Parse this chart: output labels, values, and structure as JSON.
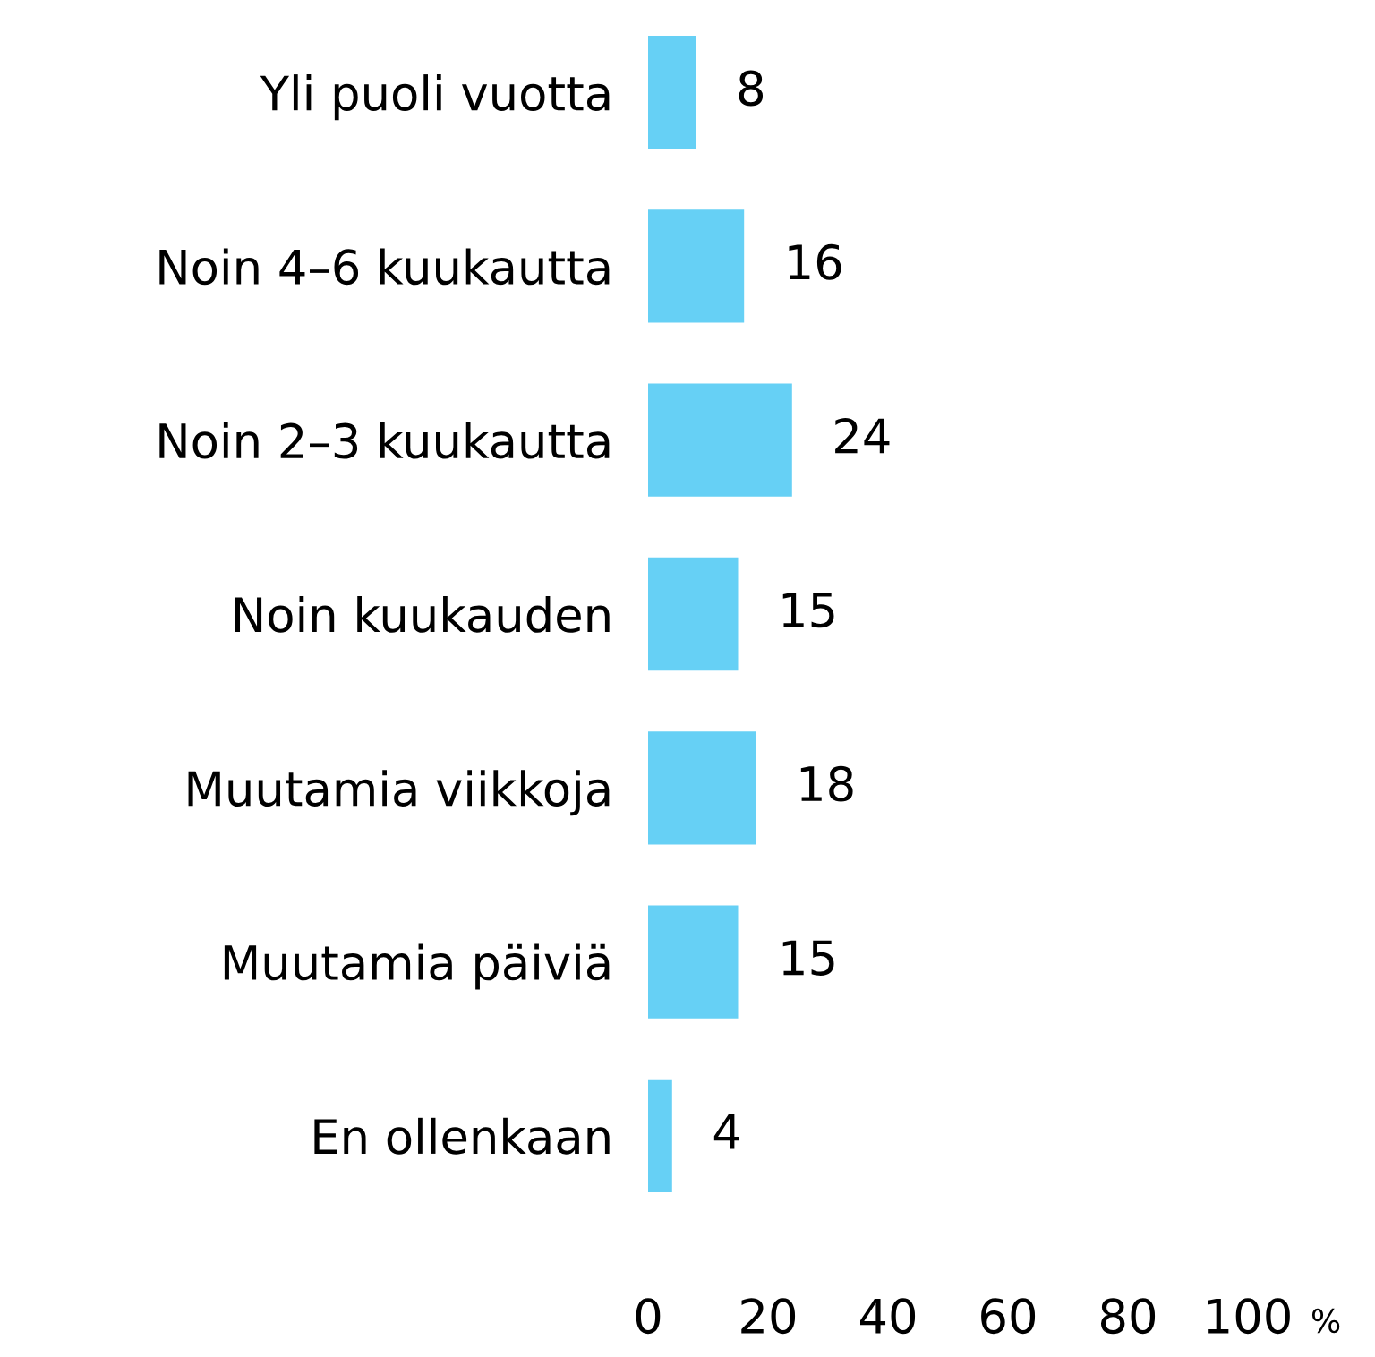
{
  "chart_data": {
    "type": "bar",
    "orientation": "horizontal",
    "categories": [
      "Yli puoli vuotta",
      "Noin 4–6 kuukautta",
      "Noin 2–3 kuukautta",
      "Noin kuukauden",
      "Muutamia viikkoja",
      "Muutamia päiviä",
      "En ollenkaan"
    ],
    "values": [
      8,
      16,
      24,
      15,
      18,
      15,
      4
    ],
    "color": "#66d0f5",
    "data_labels": true,
    "xlabel": "%",
    "xlim": [
      0,
      100
    ],
    "xticks": [
      0,
      20,
      40,
      60,
      80,
      100
    ],
    "grid": false,
    "legend": false
  }
}
